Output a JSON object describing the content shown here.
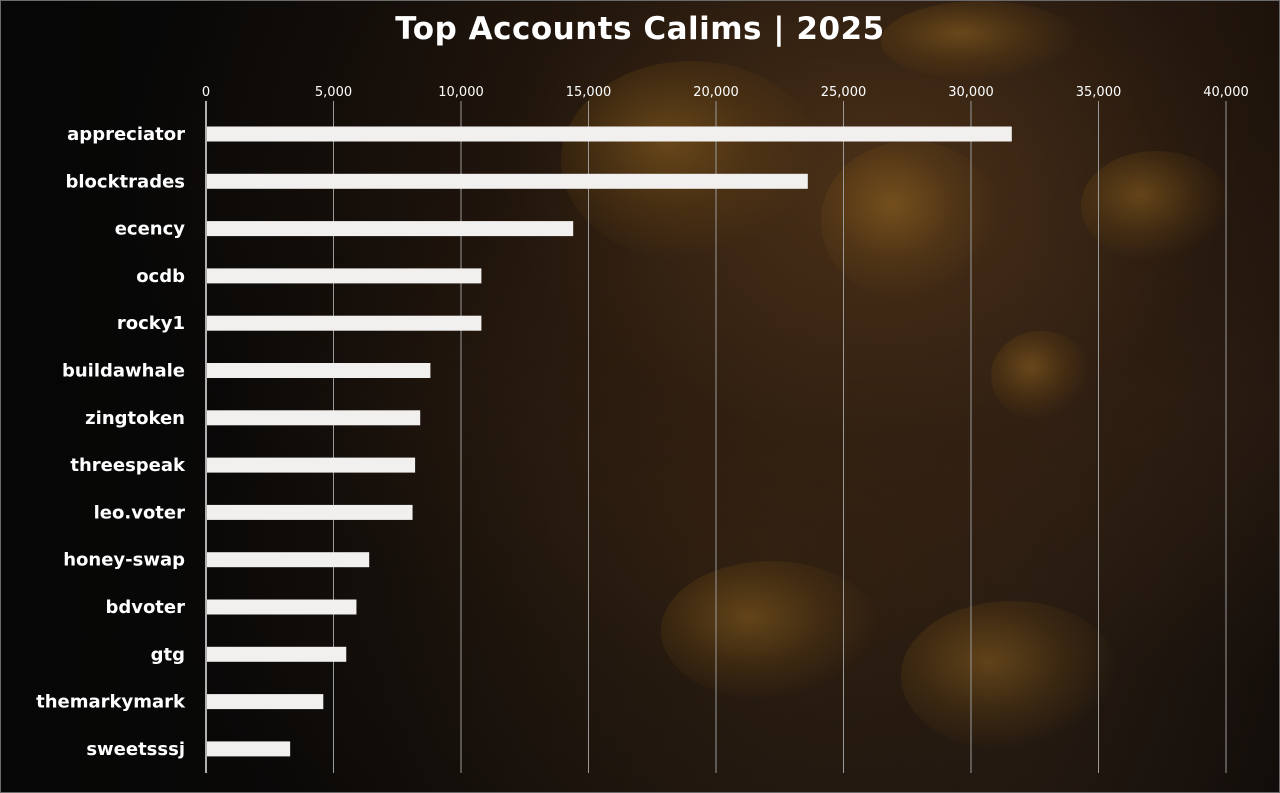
{
  "chart_data": {
    "type": "bar",
    "orientation": "horizontal",
    "title": "Top Accounts Calims  |  2025",
    "categories": [
      "appreciator",
      "blocktrades",
      "ecency",
      "ocdb",
      "rocky1",
      "buildawhale",
      "zingtoken",
      "threespeak",
      "leo.voter",
      "honey-swap",
      "bdvoter",
      "gtg",
      "themarkymark",
      "sweetsssj"
    ],
    "values": [
      31600,
      23600,
      14400,
      10800,
      10800,
      8800,
      8400,
      8200,
      8100,
      6400,
      5900,
      5500,
      4600,
      3300
    ],
    "xlim": [
      0,
      40000
    ],
    "x_ticks": [
      "0",
      "5,000",
      "10,000",
      "15,000",
      "20,000",
      "25,000",
      "30,000",
      "35,000",
      "40,000"
    ],
    "x_axis_position": "top",
    "grid": true,
    "legend": "none",
    "bar_color": "#f2f0ef",
    "gridline_color": "#9a9a9a",
    "background": "dark bee photograph"
  }
}
